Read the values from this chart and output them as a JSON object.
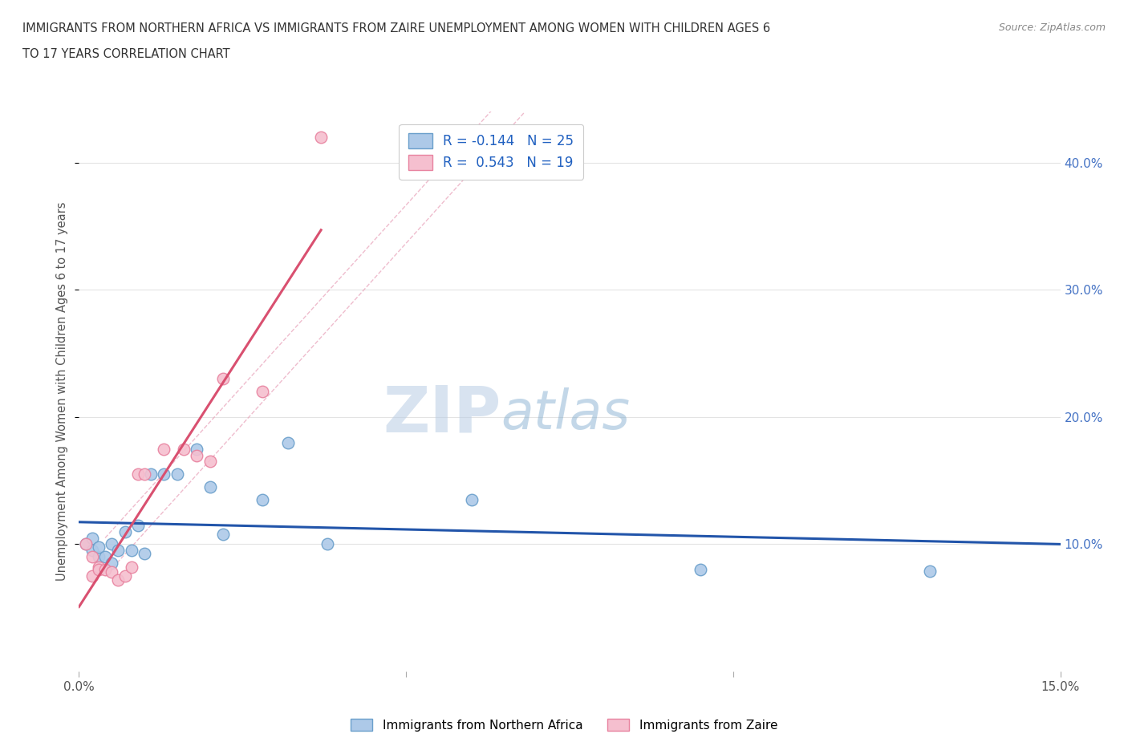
{
  "title_line1": "IMMIGRANTS FROM NORTHERN AFRICA VS IMMIGRANTS FROM ZAIRE UNEMPLOYMENT AMONG WOMEN WITH CHILDREN AGES 6",
  "title_line2": "TO 17 YEARS CORRELATION CHART",
  "source": "Source: ZipAtlas.com",
  "ylabel": "Unemployment Among Women with Children Ages 6 to 17 years",
  "xlim": [
    0.0,
    0.15
  ],
  "ylim": [
    0.0,
    0.44
  ],
  "xtick_positions": [
    0.0,
    0.05,
    0.1,
    0.15
  ],
  "xtick_labels": [
    "0.0%",
    "",
    "",
    "15.0%"
  ],
  "ytick_vals": [
    0.1,
    0.2,
    0.3,
    0.4
  ],
  "ytick_labels": [
    "10.0%",
    "20.0%",
    "30.0%",
    "40.0%"
  ],
  "blue_color": "#adc9e8",
  "blue_border": "#6a9fcb",
  "pink_color": "#f5bfcf",
  "pink_border": "#e8829f",
  "trend_blue": "#2255aa",
  "trend_pink": "#d95070",
  "conf_band_color": "#e8a0b8",
  "watermark_color": "#ccd9ee",
  "R_blue": -0.144,
  "N_blue": 25,
  "R_pink": 0.543,
  "N_pink": 19,
  "blue_scatter_x": [
    0.001,
    0.002,
    0.002,
    0.003,
    0.003,
    0.004,
    0.005,
    0.005,
    0.006,
    0.007,
    0.008,
    0.009,
    0.01,
    0.011,
    0.013,
    0.015,
    0.018,
    0.02,
    0.022,
    0.028,
    0.032,
    0.038,
    0.06,
    0.095,
    0.13
  ],
  "blue_scatter_y": [
    0.1,
    0.095,
    0.105,
    0.09,
    0.098,
    0.09,
    0.1,
    0.085,
    0.095,
    0.11,
    0.095,
    0.115,
    0.093,
    0.155,
    0.155,
    0.155,
    0.175,
    0.145,
    0.108,
    0.135,
    0.18,
    0.1,
    0.135,
    0.08,
    0.079
  ],
  "pink_scatter_x": [
    0.001,
    0.002,
    0.002,
    0.003,
    0.003,
    0.004,
    0.005,
    0.006,
    0.007,
    0.008,
    0.009,
    0.01,
    0.013,
    0.016,
    0.018,
    0.02,
    0.022,
    0.028,
    0.037
  ],
  "pink_scatter_y": [
    0.1,
    0.075,
    0.09,
    0.082,
    0.08,
    0.08,
    0.078,
    0.072,
    0.075,
    0.082,
    0.155,
    0.155,
    0.175,
    0.175,
    0.17,
    0.165,
    0.23,
    0.22,
    0.42
  ],
  "legend_label_blue": "Immigrants from Northern Africa",
  "legend_label_pink": "Immigrants from Zaire",
  "marker_size": 110
}
